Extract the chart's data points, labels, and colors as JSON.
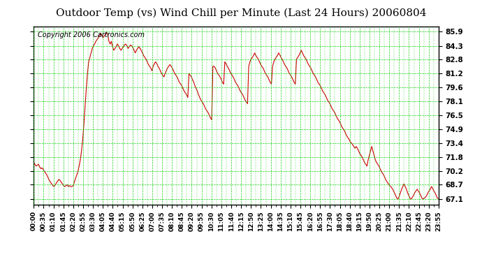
{
  "title": "Outdoor Temp (vs) Wind Chill per Minute (Last 24 Hours) 20060804",
  "copyright": "Copyright 2006 Cartronics.com",
  "line_color": "#cc0000",
  "background_color": "#ffffff",
  "plot_bg_color": "#ffffff",
  "grid_color": "#00cc00",
  "yticks": [
    67.1,
    68.7,
    70.2,
    71.8,
    73.4,
    74.9,
    76.5,
    78.1,
    79.6,
    81.2,
    82.8,
    84.3,
    85.9
  ],
  "ylim": [
    66.5,
    86.5
  ],
  "xtick_labels": [
    "00:00",
    "00:35",
    "01:10",
    "01:45",
    "02:20",
    "02:55",
    "03:30",
    "04:05",
    "04:40",
    "05:15",
    "05:50",
    "06:25",
    "07:00",
    "07:35",
    "08:10",
    "08:45",
    "09:20",
    "09:55",
    "10:30",
    "11:05",
    "11:40",
    "12:15",
    "12:50",
    "13:25",
    "14:00",
    "14:35",
    "15:10",
    "15:45",
    "16:20",
    "16:55",
    "17:30",
    "18:05",
    "18:40",
    "19:15",
    "19:50",
    "20:25",
    "21:00",
    "21:35",
    "22:10",
    "22:45",
    "23:20",
    "23:55"
  ],
  "curve": [
    71.2,
    71.0,
    70.8,
    70.9,
    71.0,
    70.7,
    70.5,
    70.6,
    70.4,
    70.2,
    70.0,
    69.8,
    69.5,
    69.2,
    69.0,
    68.8,
    68.6,
    68.5,
    68.7,
    68.9,
    69.1,
    69.3,
    69.2,
    69.0,
    68.8,
    68.6,
    68.5,
    68.6,
    68.7,
    68.5,
    68.6,
    68.5,
    68.5,
    68.6,
    69.0,
    69.4,
    69.8,
    70.2,
    70.8,
    71.5,
    72.5,
    73.8,
    75.5,
    77.5,
    79.5,
    81.2,
    82.5,
    83.0,
    83.5,
    84.0,
    84.3,
    84.5,
    84.8,
    85.0,
    85.2,
    85.5,
    85.7,
    85.5,
    85.2,
    85.4,
    85.6,
    85.8,
    85.5,
    84.8,
    84.5,
    84.8,
    84.2,
    83.8,
    84.0,
    84.2,
    84.5,
    84.3,
    84.0,
    83.8,
    84.0,
    84.2,
    84.4,
    84.5,
    84.3,
    84.0,
    84.2,
    84.4,
    84.3,
    84.1,
    83.8,
    83.5,
    83.8,
    84.0,
    84.2,
    84.0,
    83.8,
    83.5,
    83.2,
    83.0,
    82.8,
    82.5,
    82.2,
    82.0,
    81.8,
    81.5,
    82.0,
    82.3,
    82.5,
    82.3,
    82.0,
    81.8,
    81.5,
    81.2,
    81.0,
    80.8,
    81.2,
    81.5,
    81.8,
    82.0,
    82.2,
    82.0,
    81.8,
    81.5,
    81.2,
    81.0,
    80.8,
    80.5,
    80.2,
    80.0,
    79.8,
    79.5,
    79.2,
    79.0,
    78.8,
    78.5,
    81.2,
    81.0,
    80.8,
    80.5,
    80.2,
    79.8,
    79.5,
    79.2,
    78.8,
    78.5,
    78.2,
    78.0,
    77.8,
    77.5,
    77.2,
    77.0,
    76.8,
    76.5,
    76.2,
    76.0,
    82.0,
    82.0,
    81.8,
    81.5,
    81.2,
    81.0,
    80.8,
    80.5,
    80.2,
    80.0,
    82.5,
    82.3,
    82.0,
    81.8,
    81.5,
    81.2,
    81.0,
    80.8,
    80.5,
    80.2,
    80.0,
    79.8,
    79.5,
    79.2,
    79.0,
    78.8,
    78.5,
    78.2,
    78.0,
    77.8,
    82.0,
    82.5,
    82.8,
    83.0,
    83.2,
    83.5,
    83.2,
    83.0,
    82.8,
    82.5,
    82.2,
    82.0,
    81.8,
    81.5,
    81.2,
    81.0,
    80.8,
    80.5,
    80.2,
    80.0,
    82.0,
    82.5,
    82.8,
    83.0,
    83.2,
    83.5,
    83.3,
    83.0,
    82.8,
    82.5,
    82.2,
    82.0,
    81.8,
    81.5,
    81.2,
    81.0,
    80.8,
    80.5,
    80.2,
    80.0,
    82.8,
    83.0,
    83.2,
    83.5,
    83.8,
    83.5,
    83.2,
    83.0,
    82.8,
    82.5,
    82.2,
    82.0,
    81.8,
    81.5,
    81.2,
    81.0,
    80.8,
    80.5,
    80.2,
    80.0,
    79.8,
    79.5,
    79.2,
    79.0,
    78.8,
    78.5,
    78.2,
    78.0,
    77.8,
    77.5,
    77.2,
    77.0,
    76.8,
    76.5,
    76.2,
    76.0,
    75.8,
    75.5,
    75.2,
    75.0,
    74.8,
    74.5,
    74.2,
    74.0,
    73.8,
    73.5,
    73.4,
    73.2,
    73.0,
    72.8,
    73.0,
    72.8,
    72.5,
    72.2,
    72.0,
    71.8,
    71.5,
    71.2,
    71.0,
    70.8,
    71.5,
    72.0,
    72.5,
    73.0,
    72.5,
    72.0,
    71.5,
    71.2,
    71.0,
    70.8,
    70.5,
    70.2,
    70.0,
    69.8,
    69.5,
    69.2,
    69.0,
    68.8,
    68.6,
    68.5,
    68.3,
    68.1,
    67.8,
    67.5,
    67.2,
    67.1,
    67.4,
    67.8,
    68.2,
    68.5,
    68.8,
    68.5,
    68.2,
    67.8,
    67.5,
    67.2,
    67.1,
    67.3,
    67.5,
    67.8,
    68.0,
    68.2,
    68.0,
    67.8,
    67.5,
    67.2,
    67.1,
    67.2,
    67.3,
    67.5,
    67.8,
    68.0,
    68.2,
    68.5,
    68.3,
    68.0,
    67.8,
    67.5,
    67.2,
    67.1
  ]
}
